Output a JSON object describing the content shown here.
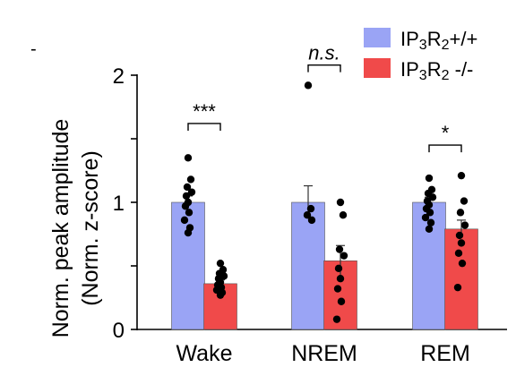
{
  "chart_data": {
    "type": "bar",
    "title": "",
    "ylabel_line1": "Norm. peak amplitude",
    "ylabel_line2": "(Norm. z-score)",
    "xlabel": "",
    "ylim": [
      0,
      2
    ],
    "yticks": [
      0,
      0.5,
      1,
      1.5,
      2
    ],
    "ytick_labels": [
      "0",
      "",
      "1",
      "",
      "2"
    ],
    "categories": [
      "Wake",
      "NREM",
      "REM"
    ],
    "legend_position": "top-right",
    "series": [
      {
        "name": "IP3R2+/+",
        "name_parts": {
          "pre": "IP",
          "sub": "3",
          "mid": "R",
          "sub2": "2",
          "post": "+/+"
        },
        "color": "#9aa4f5",
        "values": [
          1.0,
          1.0,
          1.0
        ],
        "errors": [
          0.05,
          0.13,
          0.04
        ],
        "points": [
          [
            1.35,
            1.18,
            1.12,
            1.08,
            1.05,
            1.0,
            0.97,
            0.92,
            0.86,
            0.8,
            0.76
          ],
          [
            1.92,
            0.95,
            0.9,
            0.86
          ],
          [
            1.19,
            1.1,
            1.07,
            1.04,
            1.01,
            0.98,
            0.95,
            0.92,
            0.88,
            0.84,
            0.79
          ]
        ]
      },
      {
        "name": "IP3R2 -/-",
        "name_parts": {
          "pre": "IP",
          "sub": "3",
          "mid": "R",
          "sub2": "2",
          "post": " -/-"
        },
        "color": "#f04a4a",
        "values": [
          0.36,
          0.54,
          0.79
        ],
        "errors": [
          0.03,
          0.12,
          0.07
        ],
        "points": [
          [
            0.52,
            0.47,
            0.44,
            0.42,
            0.4,
            0.37,
            0.35,
            0.33,
            0.31,
            0.29,
            0.27
          ],
          [
            1.0,
            0.9,
            0.63,
            0.58,
            0.48,
            0.4,
            0.32,
            0.22,
            0.08
          ],
          [
            1.21,
            1.01,
            0.92,
            0.82,
            0.74,
            0.68,
            0.6,
            0.52,
            0.33
          ]
        ]
      }
    ],
    "annotations": [
      {
        "category": "Wake",
        "label": "***",
        "style": "normal",
        "bracket_y": 1.62
      },
      {
        "category": "NREM",
        "label": "n.s.",
        "style": "italic",
        "bracket_y": 2.08
      },
      {
        "category": "REM",
        "label": "*",
        "style": "normal",
        "bracket_y": 1.45
      }
    ]
  },
  "corner_mark": "-"
}
